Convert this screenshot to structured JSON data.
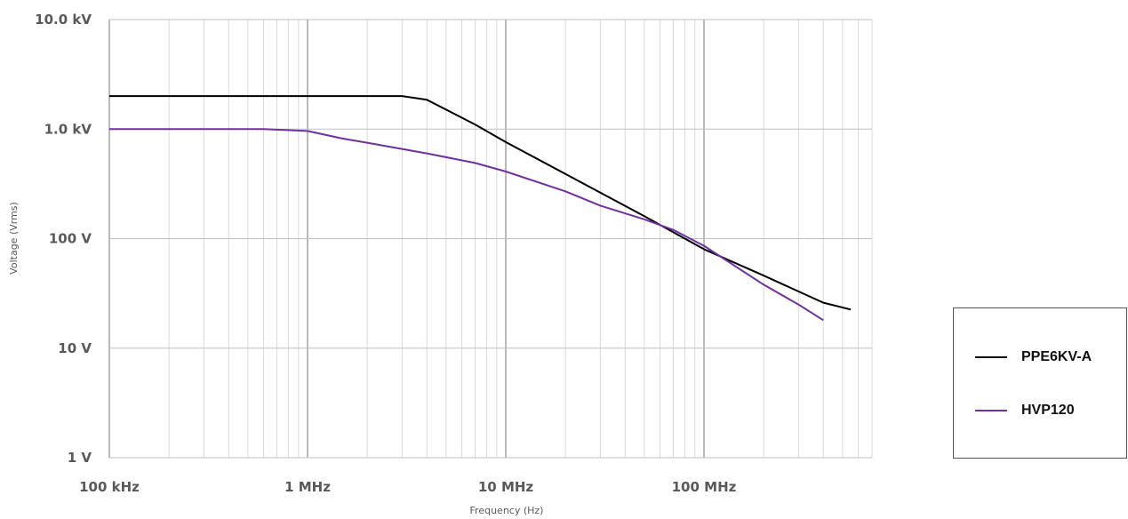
{
  "chart_data": {
    "type": "line",
    "xlabel": "Frequency (Hz)",
    "ylabel": "Voltage (Vrms)",
    "x_scale": "log",
    "y_scale": "log",
    "xlim": [
      100000,
      600000000
    ],
    "ylim": [
      1,
      10000
    ],
    "x_ticks": [
      {
        "value": 100000,
        "label": "100 kHz"
      },
      {
        "value": 1000000,
        "label": "1 MHz"
      },
      {
        "value": 10000000,
        "label": "10 MHz"
      },
      {
        "value": 100000000,
        "label": "100 MHz"
      }
    ],
    "y_ticks": [
      {
        "value": 1,
        "label": "1 V"
      },
      {
        "value": 10,
        "label": "10 V"
      },
      {
        "value": 100,
        "label": "100 V"
      },
      {
        "value": 1000,
        "label": "1.0 kV"
      },
      {
        "value": 10000,
        "label": "10.0 kV"
      }
    ],
    "grid": true,
    "legend_position": "right",
    "series": [
      {
        "name": "PPE6KV-A",
        "color": "#000000",
        "points": [
          [
            100000,
            2000
          ],
          [
            1000000,
            2000
          ],
          [
            3000000,
            2000
          ],
          [
            4000000,
            1850
          ],
          [
            7000000,
            1100
          ],
          [
            10000000,
            760
          ],
          [
            20000000,
            390
          ],
          [
            50000000,
            160
          ],
          [
            100000000,
            80
          ],
          [
            200000000,
            46
          ],
          [
            400000000,
            26
          ],
          [
            550000000,
            22.5
          ]
        ]
      },
      {
        "name": "HVP120",
        "color": "#7030a0",
        "points": [
          [
            100000,
            1000
          ],
          [
            600000,
            1000
          ],
          [
            1000000,
            960
          ],
          [
            1500000,
            820
          ],
          [
            2000000,
            750
          ],
          [
            4000000,
            600
          ],
          [
            7000000,
            490
          ],
          [
            10000000,
            410
          ],
          [
            20000000,
            270
          ],
          [
            30000000,
            200
          ],
          [
            50000000,
            150
          ],
          [
            70000000,
            120
          ],
          [
            100000000,
            86
          ],
          [
            200000000,
            38
          ],
          [
            300000000,
            25
          ],
          [
            400000000,
            18
          ]
        ]
      }
    ]
  }
}
